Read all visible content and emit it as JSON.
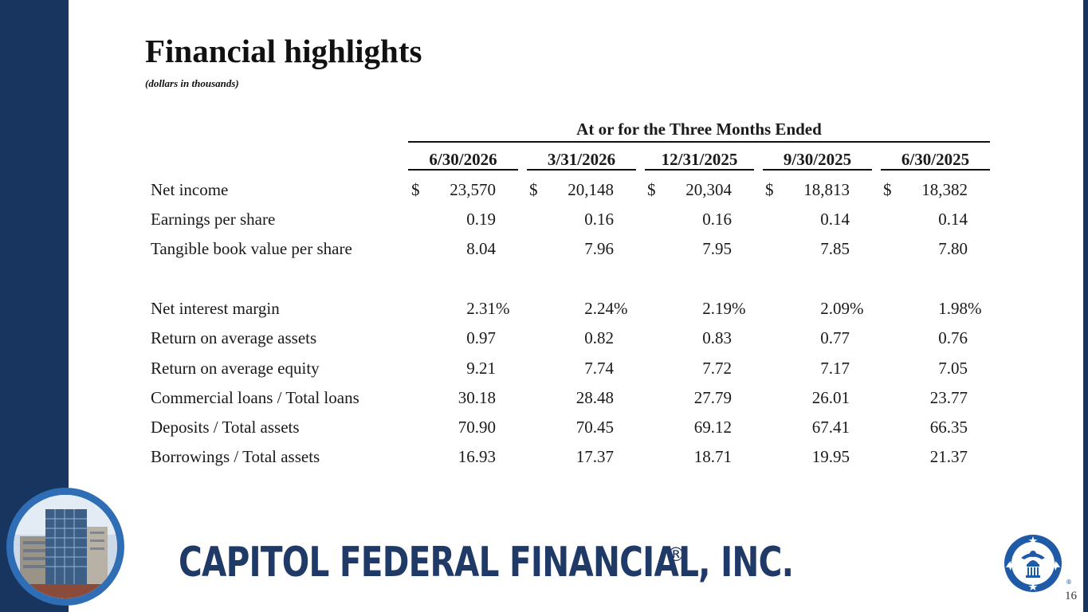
{
  "slide": {
    "title": "Financial highlights",
    "subtitle": "(dollars in thousands)",
    "page_number": "16"
  },
  "table": {
    "group_header": "At or for the Three Months Ended",
    "columns": [
      "6/30/2026",
      "3/31/2026",
      "12/31/2025",
      "9/30/2025",
      "6/30/2025"
    ],
    "rows": [
      {
        "label": "Net income",
        "currency": "$",
        "values": [
          "23,570",
          "20,148",
          "20,304",
          "18,813",
          "18,382"
        ]
      },
      {
        "label": "Earnings per share",
        "values": [
          "0.19",
          "0.16",
          "0.16",
          "0.14",
          "0.14"
        ]
      },
      {
        "label": "Tangible book value per share",
        "values": [
          "8.04",
          "7.96",
          "7.95",
          "7.85",
          "7.80"
        ]
      },
      {
        "label": "Net interest margin",
        "percent": "%",
        "values": [
          "2.31",
          "2.24",
          "2.19",
          "2.09",
          "1.98"
        ]
      },
      {
        "label": "Return on average assets",
        "values": [
          "0.97",
          "0.82",
          "0.83",
          "0.77",
          "0.76"
        ]
      },
      {
        "label": "Return on average equity",
        "values": [
          "9.21",
          "7.74",
          "7.72",
          "7.17",
          "7.05"
        ]
      },
      {
        "label": "Commercial loans / Total loans",
        "values": [
          "30.18",
          "28.48",
          "27.79",
          "26.01",
          "23.77"
        ]
      },
      {
        "label": "Deposits / Total assets",
        "values": [
          "70.90",
          "70.45",
          "69.12",
          "67.41",
          "66.35"
        ]
      },
      {
        "label": "Borrowings / Total assets",
        "values": [
          "16.93",
          "17.37",
          "18.71",
          "19.95",
          "21.37"
        ]
      }
    ]
  },
  "brand": {
    "name": "CAPITOL FEDERAL FINANCIAL, INC.",
    "registered_mark": "®"
  },
  "colors": {
    "navy": "#17355e",
    "brand_blue": "#1f3a66",
    "seal_blue": "#1f5aa6"
  }
}
